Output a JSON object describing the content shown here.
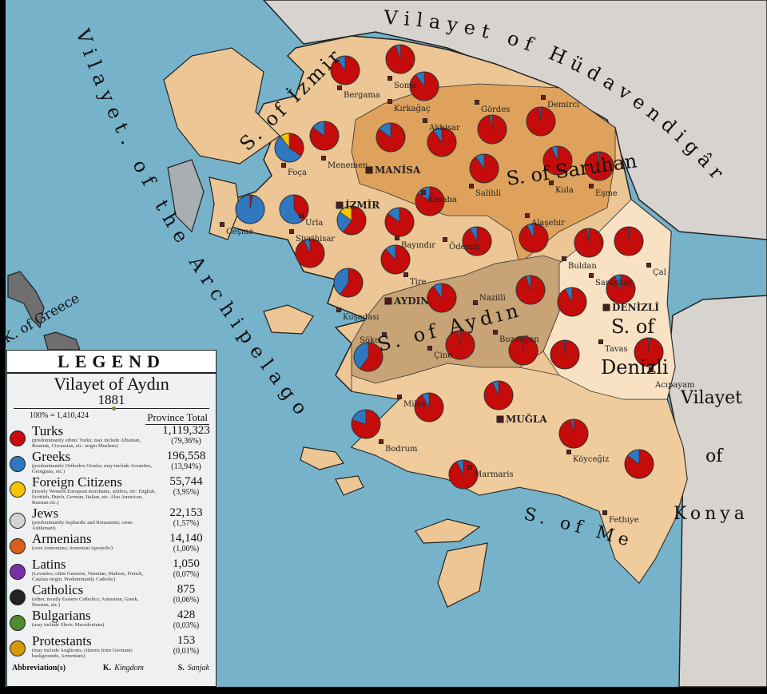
{
  "colors": {
    "sea": "#76b3cb",
    "foreign_land": "#d7d3cf",
    "greece": "#6f6f6f",
    "izmir": "#ecc694",
    "saruhan": "#dea25c",
    "aydin": "#c8a375",
    "denizli": "#f9e2c3",
    "mentese": "#f0cc9c",
    "turks": "#c60b0b",
    "greeks": "#2f78c0",
    "foreign": "#f7c400"
  },
  "map_labels": {
    "hudavendigar": "Vilayet of Hüdavendigâr",
    "archipelago": "Vilayet. of the Archipelago",
    "greece": "K. of Greece",
    "izmir_sanjak": "S. of İzmir",
    "saruhan": "S. of Saruhan",
    "aydin_sanjak": "S. of Aydın",
    "denizli_s": "S. of",
    "denizli_name": "Denizli",
    "mentese": "S. of Menteşe",
    "konya_1": "Vilayet",
    "konya_2": "of",
    "konya_3": "Konya"
  },
  "towns": [
    "Bergama",
    "Soma",
    "Kırkağaç",
    "Akhisar",
    "Gördes",
    "Demirci",
    "Menemen",
    "Foça",
    "MANİSA",
    "İZMİR",
    "Kasaba",
    "Salihli",
    "Kula",
    "Eşme",
    "Çeşme",
    "Urla",
    "Sivrihisar",
    "Bayındır",
    "Ödemiş",
    "Alaşehir",
    "Tire",
    "Buldan",
    "Çal",
    "Sarayköy",
    "DENİZLİ",
    "Kuşadası",
    "AYDIN",
    "Nazilli",
    "Söke",
    "Bozdoğan",
    "Çine",
    "Tavas",
    "Acıpayam",
    "Milas",
    "MUĞLA",
    "Bodrum",
    "Köyceğiz",
    "Marmaris",
    "Fethiye"
  ],
  "pies": [
    {
      "turks": 0.9,
      "greeks": 0.1,
      "foreign": 0
    },
    {
      "turks": 0.95,
      "greeks": 0.05,
      "foreign": 0
    },
    {
      "turks": 0.9,
      "greeks": 0.1,
      "foreign": 0
    },
    {
      "turks": 0.85,
      "greeks": 0.15,
      "foreign": 0
    },
    {
      "turks": 0.35,
      "greeks": 0.55,
      "foreign": 0.1
    },
    {
      "turks": 0.85,
      "greeks": 0.15,
      "foreign": 0
    },
    {
      "turks": 0.9,
      "greeks": 0.1,
      "foreign": 0
    },
    {
      "turks": 0.97,
      "greeks": 0.03,
      "foreign": 0
    },
    {
      "turks": 0.98,
      "greeks": 0.02,
      "foreign": 0
    },
    {
      "turks": 0.03,
      "greeks": 0.97,
      "foreign": 0
    },
    {
      "turks": 0.4,
      "greeks": 0.6,
      "foreign": 0
    },
    {
      "turks": 0.6,
      "greeks": 0.25,
      "foreign": 0.15
    },
    {
      "turks": 0.85,
      "greeks": 0.15,
      "foreign": 0
    },
    {
      "turks": 0.85,
      "greeks": 0.15,
      "foreign": 0
    },
    {
      "turks": 0.9,
      "greeks": 0.1,
      "foreign": 0
    },
    {
      "turks": 0.93,
      "greeks": 0.07,
      "foreign": 0
    },
    {
      "turks": 0.98,
      "greeks": 0.02,
      "foreign": 0
    },
    {
      "turks": 0.93,
      "greeks": 0.07,
      "foreign": 0
    },
    {
      "turks": 0.88,
      "greeks": 0.12,
      "foreign": 0
    },
    {
      "turks": 0.92,
      "greeks": 0.08,
      "foreign": 0
    },
    {
      "turks": 0.92,
      "greeks": 0.08,
      "foreign": 0
    },
    {
      "turks": 0.98,
      "greeks": 0.02,
      "foreign": 0
    },
    {
      "turks": 0.99,
      "greeks": 0.01,
      "foreign": 0
    },
    {
      "turks": 0.6,
      "greeks": 0.4,
      "foreign": 0
    },
    {
      "turks": 0.9,
      "greeks": 0.1,
      "foreign": 0
    },
    {
      "turks": 0.95,
      "greeks": 0.05,
      "foreign": 0
    },
    {
      "turks": 0.92,
      "greeks": 0.08,
      "foreign": 0
    },
    {
      "turks": 0.93,
      "greeks": 0.07,
      "foreign": 0
    },
    {
      "turks": 0.6,
      "greeks": 0.4,
      "foreign": 0
    },
    {
      "turks": 0.98,
      "greeks": 0.02,
      "foreign": 0
    },
    {
      "turks": 0.99,
      "greeks": 0.01,
      "foreign": 0
    },
    {
      "turks": 0.99,
      "greeks": 0.01,
      "foreign": 0
    },
    {
      "turks": 0.99,
      "greeks": 0.01,
      "foreign": 0
    },
    {
      "turks": 0.92,
      "greeks": 0.08,
      "foreign": 0
    },
    {
      "turks": 0.93,
      "greeks": 0.07,
      "foreign": 0
    },
    {
      "turks": 0.8,
      "greeks": 0.2,
      "foreign": 0
    },
    {
      "turks": 0.97,
      "greeks": 0.03,
      "foreign": 0
    },
    {
      "turks": 0.85,
      "greeks": 0.15,
      "foreign": 0
    },
    {
      "turks": 0.92,
      "greeks": 0.08,
      "foreign": 0
    }
  ],
  "legend": {
    "heading": "LEGEND",
    "title": "Vilayet of Aydın",
    "year": "1881",
    "total_label": "100% = 1,410,424",
    "column_header": "Province Total",
    "groups": [
      {
        "name": "Turks",
        "desc": "(predominantly ethnic Turks; may include Albanian, Bosniak, Circassian, etc. origin Muslims)",
        "count": "1,119,323",
        "pct": "(79,36%)",
        "color": "#c60b0b"
      },
      {
        "name": "Greeks",
        "desc": "(predominantly Orthodox Greeks; may include Arvanites, Georgians, etc.)",
        "count": "196,558",
        "pct": "(13,94%)",
        "color": "#2f78c0"
      },
      {
        "name": "Foreign Citizens",
        "desc": "(mostly Western European merchants, settlers, etc: English, Scottish, Dutch, German, Italian, etc. Also American, Russian etc.)",
        "count": "55,744",
        "pct": "(3,95%)",
        "color": "#f7c400"
      },
      {
        "name": "Jews",
        "desc": "(predominantly Sephardic and Romaniote; some Ashkenazi)",
        "count": "22,153",
        "pct": "(1,57%)",
        "color": "#d3d3d3"
      },
      {
        "name": "Armenians",
        "desc": "(core Armenians; Armenian Apostolic)",
        "count": "14,140",
        "pct": "(1,00%)",
        "color": "#d9601a"
      },
      {
        "name": "Latins",
        "desc": "(Levantes; often Genoese, Venetian, Maltese, French, Catalan origin. Predominantly Catholic)",
        "count": "1,050",
        "pct": "(0,07%)",
        "color": "#7a2fa8"
      },
      {
        "name": "Catholics",
        "desc": "(other, mostly Eastern Catholics; Armenian, Greek, Russian, etc.)",
        "count": "875",
        "pct": "(0,06%)",
        "color": "#222222"
      },
      {
        "name": "Bulgarians",
        "desc": "(may include Slavic Macedonians)",
        "count": "428",
        "pct": "(0,03%)",
        "color": "#4d8a32"
      },
      {
        "name": "Protestants",
        "desc": "(may include Anglicans, citizens from Germanic backgrounds, Armenians)",
        "count": "153",
        "pct": "(0,01%)",
        "color": "#d49a06"
      }
    ],
    "abbr_label": "Abbreviation(s)",
    "abbr": [
      {
        "key": "K.",
        "value": "Kingdom"
      },
      {
        "key": "S.",
        "value": "Sanjak"
      }
    ]
  }
}
